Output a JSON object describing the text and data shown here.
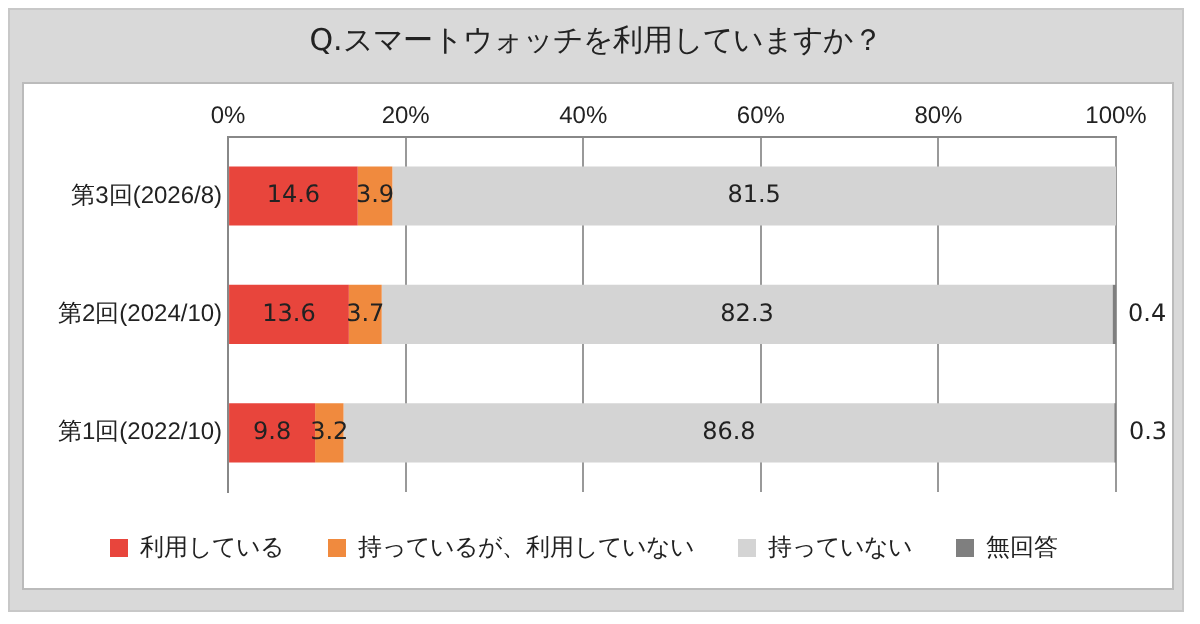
{
  "chart_data": {
    "type": "bar",
    "orientation": "horizontal",
    "stacked": true,
    "title": "Q.スマートウォッチを利用していますか？",
    "categories": [
      "第3回(2026/8)",
      "第2回(2024/10)",
      "第1回(2022/10)"
    ],
    "series": [
      {
        "name": "利用している",
        "color": "#e8453c",
        "values": [
          14.6,
          13.6,
          9.8
        ]
      },
      {
        "name": "持っているが、利用していない",
        "color": "#f08a3e",
        "values": [
          3.9,
          3.7,
          3.2
        ]
      },
      {
        "name": "持っていない",
        "color": "#d4d4d4",
        "values": [
          81.5,
          82.3,
          86.8
        ]
      },
      {
        "name": "無回答",
        "color": "#7f7f7f",
        "values": [
          null,
          0.4,
          0.3
        ]
      }
    ],
    "xlim": [
      0,
      100
    ],
    "xticks": [
      {
        "value": 0,
        "label": "0%"
      },
      {
        "value": 20,
        "label": "20%"
      },
      {
        "value": 40,
        "label": "40%"
      },
      {
        "value": 60,
        "label": "60%"
      },
      {
        "value": 80,
        "label": "80%"
      },
      {
        "value": 100,
        "label": "100%"
      }
    ],
    "grid": "x",
    "legend": "bottom",
    "data_labels": true
  }
}
